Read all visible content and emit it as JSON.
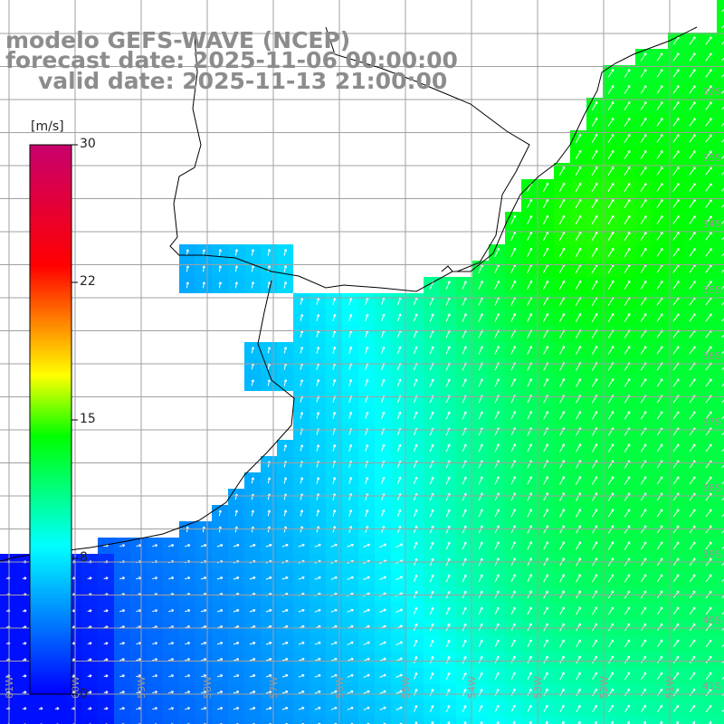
{
  "header": {
    "line1": "modelo GEFS-WAVE (NCEP)",
    "line2": "forecast date: 2025-11-06 00:00:00",
    "line3": "valid date: 2025-11-13 21:00:00"
  },
  "colorbar": {
    "unit": "[m/s]",
    "ticks": [
      "30",
      "22",
      "15",
      "8",
      "0"
    ],
    "min": 0,
    "max": 30,
    "colors": [
      "#0000ff",
      "#00ffff",
      "#00ff00",
      "#ffff00",
      "#ff0000",
      "#c8006e"
    ]
  },
  "axes": {
    "lat_labels": [
      "32S",
      "33S",
      "34S",
      "35S",
      "36S",
      "37S",
      "38S",
      "39S",
      "40S",
      "41S"
    ],
    "lon_labels": [
      "61W",
      "60W",
      "59W",
      "58W",
      "57W",
      "56W",
      "55W",
      "54W",
      "53W",
      "52W",
      "51W"
    ]
  },
  "map_data": {
    "region": "Rio de la Plata / South Atlantic",
    "field": "wind speed at 10 m with direction arrows",
    "land_color": "#ffffff",
    "coastline_color": "#000000",
    "grid_color": "#a0a0a0"
  }
}
